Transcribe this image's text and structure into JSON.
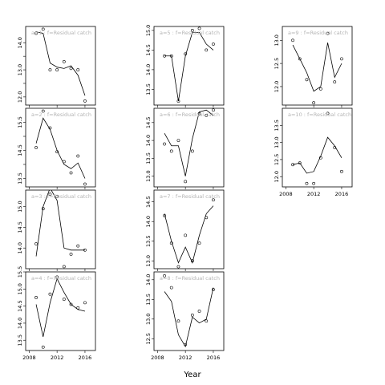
{
  "figure": {
    "xlabel": "Year"
  },
  "chart_data": [
    {
      "type": "line",
      "title": "a=1 : f=Residual catch",
      "xlim": [
        2007.5,
        2017.5
      ],
      "ylim": [
        11.7,
        14.6
      ],
      "yticks": [
        12.0,
        12.5,
        13.0,
        13.5,
        14.0
      ],
      "ytick_labels": [
        "12.0",
        "",
        "13.0",
        "",
        "14.0"
      ],
      "xticks": [
        2008,
        2012,
        2016
      ],
      "show_xticklabels": false,
      "points": {
        "x": [
          2009,
          2010,
          2011,
          2012,
          2013,
          2014,
          2015,
          2016
        ],
        "y": [
          14.35,
          14.5,
          13.0,
          13.0,
          13.3,
          13.05,
          13.0,
          11.85
        ]
      },
      "fit": {
        "x": [
          2009,
          2010,
          2011,
          2012,
          2013,
          2014,
          2015,
          2016
        ],
        "y": [
          14.4,
          14.35,
          13.25,
          13.1,
          13.05,
          13.15,
          12.8,
          12.05
        ]
      }
    },
    {
      "type": "line",
      "title": "a=2 : f=Residual catch",
      "xlim": [
        2007.5,
        2017.5
      ],
      "ylim": [
        13.2,
        16.0
      ],
      "yticks": [
        13.5,
        14.0,
        14.5,
        15.0,
        15.5
      ],
      "ytick_labels": [
        "13.5",
        "",
        "14.5",
        "",
        "15.5"
      ],
      "xticks": [
        2008,
        2012,
        2016
      ],
      "show_xticklabels": false,
      "points": {
        "x": [
          2009,
          2010,
          2011,
          2012,
          2013,
          2014,
          2015,
          2016
        ],
        "y": [
          14.6,
          15.9,
          15.3,
          14.45,
          14.1,
          13.7,
          14.3,
          13.3
        ]
      },
      "fit": {
        "x": [
          2009,
          2010,
          2011,
          2012,
          2013,
          2014,
          2015,
          2016
        ],
        "y": [
          14.75,
          15.65,
          15.25,
          14.5,
          14.0,
          13.85,
          14.05,
          13.5
        ]
      }
    },
    {
      "type": "line",
      "title": "a=3 : f=Residual catch",
      "xlim": [
        2007.5,
        2017.5
      ],
      "ylim": [
        13.5,
        15.4
      ],
      "yticks": [
        14.0,
        14.5,
        15.0
      ],
      "ytick_labels": [
        "14.0",
        "14.5",
        "15.0"
      ],
      "xticks": [
        2008,
        2012,
        2016
      ],
      "show_xticklabels": false,
      "points": {
        "x": [
          2009,
          2010,
          2011,
          2012,
          2013,
          2014,
          2015,
          2016
        ],
        "y": [
          14.1,
          14.95,
          15.3,
          15.25,
          13.55,
          13.85,
          14.05,
          13.95
        ]
      },
      "fit": {
        "x": [
          2009,
          2010,
          2011,
          2012,
          2013,
          2014,
          2015,
          2016
        ],
        "y": [
          13.8,
          15.0,
          15.45,
          15.15,
          14.0,
          13.95,
          13.95,
          13.95
        ]
      }
    },
    {
      "type": "line",
      "title": "a=4 : f=Residual catch",
      "xlim": [
        2007.5,
        2017.5
      ],
      "ylim": [
        13.2,
        15.5
      ],
      "yticks": [
        13.5,
        14.0,
        14.5,
        15.0,
        15.5
      ],
      "ytick_labels": [
        "13.5",
        "14.0",
        "14.5",
        "15.0",
        "15.5"
      ],
      "xticks": [
        2008,
        2012,
        2016
      ],
      "xtick_labels": [
        "2008",
        "2012",
        "2016"
      ],
      "show_xticklabels": true,
      "points": {
        "x": [
          2009,
          2010,
          2011,
          2012,
          2013,
          2014,
          2015,
          2016
        ],
        "y": [
          14.75,
          13.3,
          14.85,
          15.35,
          14.7,
          14.55,
          14.45,
          14.6
        ]
      },
      "fit": {
        "x": [
          2009,
          2010,
          2011,
          2012,
          2013,
          2014,
          2015,
          2016
        ],
        "y": [
          14.55,
          13.6,
          14.6,
          15.3,
          14.9,
          14.55,
          14.4,
          14.35
        ]
      }
    },
    {
      "type": "line",
      "title": "a=5 : f=Residual catch",
      "xlim": [
        2007.5,
        2017.5
      ],
      "ylim": [
        13.1,
        15.1
      ],
      "yticks": [
        13.5,
        14.0,
        14.5,
        15.0
      ],
      "ytick_labels": [
        "13.5",
        "14.0",
        "14.5",
        "15.0"
      ],
      "xticks": [
        2008,
        2012,
        2016
      ],
      "show_xticklabels": false,
      "points": {
        "x": [
          2009,
          2010,
          2011,
          2012,
          2013,
          2014,
          2015,
          2016
        ],
        "y": [
          14.35,
          14.35,
          13.2,
          14.4,
          15.0,
          15.05,
          14.5,
          14.65
        ]
      },
      "fit": {
        "x": [
          2009,
          2010,
          2011,
          2012,
          2013,
          2014,
          2015,
          2016
        ],
        "y": [
          14.35,
          14.35,
          13.2,
          14.35,
          14.95,
          14.95,
          14.65,
          14.5
        ]
      }
    },
    {
      "type": "line",
      "title": "a=6 : f=Residual catch",
      "xlim": [
        2007.5,
        2017.5
      ],
      "ylim": [
        12.7,
        14.9
      ],
      "yticks": [
        13.0,
        13.5,
        14.0,
        14.5
      ],
      "ytick_labels": [
        "13.0",
        "13.5",
        "14.0",
        "14.5"
      ],
      "xticks": [
        2008,
        2012,
        2016
      ],
      "show_xticklabels": false,
      "points": {
        "x": [
          2009,
          2010,
          2011,
          2012,
          2013,
          2014,
          2015,
          2016
        ],
        "y": [
          13.9,
          13.7,
          14.0,
          12.85,
          13.7,
          14.75,
          14.7,
          14.85
        ]
      },
      "fit": {
        "x": [
          2009,
          2010,
          2011,
          2012,
          2013,
          2014,
          2015,
          2016
        ],
        "y": [
          14.2,
          13.85,
          13.85,
          13.0,
          14.05,
          14.8,
          14.85,
          14.7
        ]
      }
    },
    {
      "type": "line",
      "title": "a=7 : f=Residual catch",
      "xlim": [
        2007.5,
        2017.5
      ],
      "ylim": [
        12.8,
        14.8
      ],
      "yticks": [
        13.0,
        13.5,
        14.0,
        14.5
      ],
      "ytick_labels": [
        "13.0",
        "13.5",
        "14.0",
        "14.5"
      ],
      "xticks": [
        2008,
        2012,
        2016
      ],
      "show_xticklabels": false,
      "points": {
        "x": [
          2009,
          2010,
          2011,
          2012,
          2013,
          2014,
          2015,
          2016
        ],
        "y": [
          14.15,
          13.45,
          12.85,
          13.65,
          13.0,
          13.45,
          14.1,
          14.55
        ]
      },
      "fit": {
        "x": [
          2009,
          2010,
          2011,
          2012,
          2013,
          2014,
          2015,
          2016
        ],
        "y": [
          14.2,
          13.5,
          12.95,
          13.35,
          12.95,
          13.65,
          14.2,
          14.4
        ]
      }
    },
    {
      "type": "line",
      "title": "a=8 : f=Residual catch",
      "xlim": [
        2007.5,
        2017.5
      ],
      "ylim": [
        12.2,
        14.2
      ],
      "yticks": [
        12.5,
        13.0,
        13.5,
        14.0
      ],
      "ytick_labels": [
        "12.5",
        "13.0",
        "13.5",
        "14.0"
      ],
      "xticks": [
        2008,
        2012,
        2016
      ],
      "xtick_labels": [
        "2008",
        "2012",
        "2016"
      ],
      "show_xticklabels": true,
      "points": {
        "x": [
          2009,
          2010,
          2011,
          2012,
          2013,
          2014,
          2015,
          2016
        ],
        "y": [
          14.1,
          13.8,
          12.95,
          12.35,
          13.1,
          13.2,
          12.95,
          13.75
        ]
      },
      "fit": {
        "x": [
          2009,
          2010,
          2011,
          2012,
          2013,
          2014,
          2015,
          2016
        ],
        "y": [
          13.7,
          13.45,
          12.6,
          12.3,
          13.05,
          12.9,
          13.0,
          13.8
        ]
      }
    },
    {
      "type": "line",
      "title": "a=9 : f=Residual catch",
      "xlim": [
        2007.5,
        2017.5
      ],
      "ylim": [
        11.6,
        13.3
      ],
      "yticks": [
        12.0,
        12.5,
        13.0
      ],
      "ytick_labels": [
        "12.0",
        "12.5",
        "13.0"
      ],
      "xticks": [
        2008,
        2012,
        2016
      ],
      "show_xticklabels": false,
      "points": {
        "x": [
          2009,
          2010,
          2011,
          2012,
          2013,
          2014,
          2015,
          2016
        ],
        "y": [
          13.0,
          12.6,
          12.15,
          11.65,
          11.95,
          13.15,
          12.1,
          12.6
        ]
      },
      "fit": {
        "x": [
          2009,
          2010,
          2011,
          2012,
          2013,
          2014,
          2015,
          2016
        ],
        "y": [
          12.9,
          12.6,
          12.3,
          11.9,
          12.0,
          12.95,
          12.2,
          12.5
        ]
      }
    },
    {
      "type": "line",
      "title": "a=10 : f=Residual catch",
      "xlim": [
        2007.5,
        2017.5
      ],
      "ylim": [
        11.7,
        14.0
      ],
      "yticks": [
        12.0,
        12.5,
        13.0,
        13.5
      ],
      "ytick_labels": [
        "12.0",
        "12.5",
        "13.0",
        "13.5"
      ],
      "xticks": [
        2008,
        2012,
        2016
      ],
      "xtick_labels": [
        "2008",
        "2012",
        "2016"
      ],
      "show_xticklabels": true,
      "points": {
        "x": [
          2009,
          2010,
          2011,
          2012,
          2013,
          2014,
          2015,
          2016
        ],
        "y": [
          12.35,
          12.4,
          11.8,
          11.8,
          12.55,
          13.85,
          12.85,
          12.15
        ]
      },
      "fit": {
        "x": [
          2009,
          2010,
          2011,
          2012,
          2013,
          2014,
          2015,
          2016
        ],
        "y": [
          12.35,
          12.4,
          12.1,
          12.15,
          12.6,
          13.15,
          12.9,
          12.55
        ]
      }
    }
  ]
}
